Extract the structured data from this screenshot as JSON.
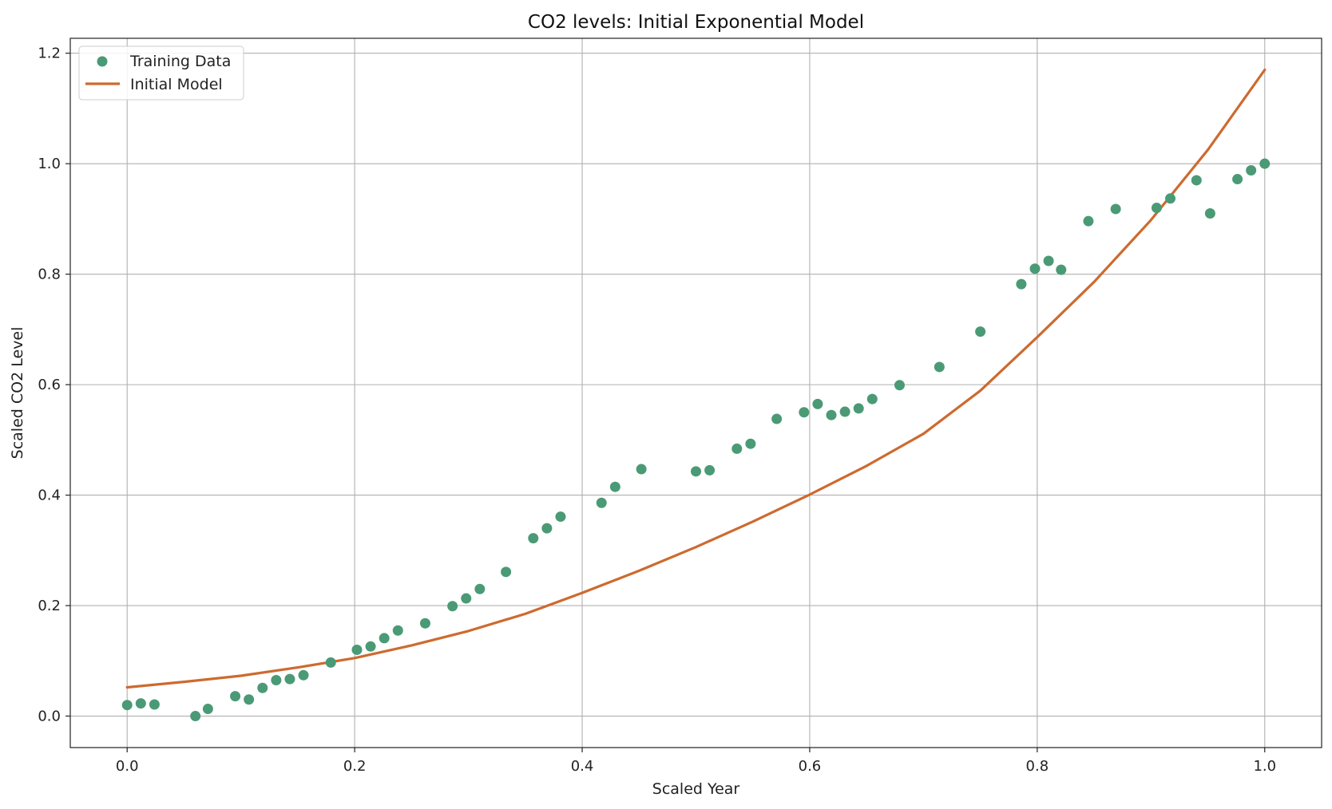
{
  "chart_data": {
    "type": "scatter",
    "title": "CO2 levels: Initial Exponential Model",
    "xlabel": "Scaled Year",
    "ylabel": "Scaled CO2 Level",
    "xlim": [
      -0.05,
      1.05
    ],
    "ylim": [
      -0.057,
      1.227
    ],
    "xticks": [
      0.0,
      0.2,
      0.4,
      0.6,
      0.8,
      1.0
    ],
    "xtick_labels": [
      "0.0",
      "0.2",
      "0.4",
      "0.6",
      "0.8",
      "1.0"
    ],
    "yticks": [
      0.0,
      0.2,
      0.4,
      0.6,
      0.8,
      1.0,
      1.2
    ],
    "ytick_labels": [
      "0.0",
      "0.2",
      "0.4",
      "0.6",
      "0.8",
      "1.0",
      "1.2"
    ],
    "grid": true,
    "legend_position": "upper-left",
    "series": [
      {
        "name": "Training Data",
        "kind": "scatter",
        "color": "#4a9a76",
        "x": [
          0.0,
          0.012,
          0.024,
          0.06,
          0.071,
          0.095,
          0.107,
          0.119,
          0.131,
          0.143,
          0.155,
          0.179,
          0.202,
          0.214,
          0.226,
          0.238,
          0.262,
          0.286,
          0.298,
          0.31,
          0.333,
          0.357,
          0.369,
          0.381,
          0.417,
          0.429,
          0.452,
          0.5,
          0.512,
          0.536,
          0.548,
          0.571,
          0.595,
          0.607,
          0.619,
          0.631,
          0.643,
          0.655,
          0.679,
          0.714,
          0.75,
          0.786,
          0.798,
          0.81,
          0.821,
          0.845,
          0.869,
          0.905,
          0.917,
          0.94,
          0.952,
          0.976,
          0.988,
          1.0
        ],
        "y": [
          0.02,
          0.023,
          0.021,
          0.0,
          0.013,
          0.036,
          0.03,
          0.051,
          0.065,
          0.067,
          0.074,
          0.097,
          0.12,
          0.126,
          0.141,
          0.155,
          0.168,
          0.199,
          0.213,
          0.23,
          0.261,
          0.322,
          0.34,
          0.361,
          0.386,
          0.415,
          0.447,
          0.443,
          0.445,
          0.484,
          0.493,
          0.538,
          0.55,
          0.565,
          0.545,
          0.551,
          0.557,
          0.574,
          0.599,
          0.632,
          0.696,
          0.782,
          0.81,
          0.824,
          0.808,
          0.896,
          0.918,
          0.92,
          0.937,
          0.97,
          0.91,
          0.972,
          0.988,
          1.0
        ]
      },
      {
        "name": "Initial Model",
        "kind": "line",
        "color": "#cd6a2f",
        "x": [
          0.0,
          0.05,
          0.1,
          0.15,
          0.2,
          0.25,
          0.3,
          0.35,
          0.4,
          0.45,
          0.5,
          0.55,
          0.6,
          0.65,
          0.7,
          0.75,
          0.8,
          0.85,
          0.9,
          0.95,
          1.0
        ],
        "y": [
          0.052,
          0.062,
          0.073,
          0.088,
          0.105,
          0.128,
          0.154,
          0.185,
          0.223,
          0.263,
          0.306,
          0.352,
          0.401,
          0.453,
          0.511,
          0.589,
          0.686,
          0.786,
          0.898,
          1.025,
          1.17
        ]
      }
    ]
  }
}
